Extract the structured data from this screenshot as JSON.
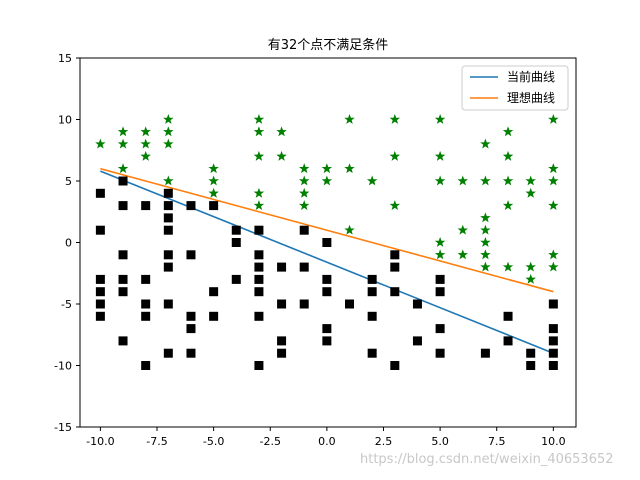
{
  "chart_data": {
    "type": "scatter",
    "title": "有32个点不满足条件",
    "xlabel": "",
    "ylabel": "",
    "xlim": [
      -10.9,
      11.0
    ],
    "ylim": [
      -15,
      15
    ],
    "x_ticks": [
      -10.0,
      -7.5,
      -5.0,
      -2.5,
      0.0,
      2.5,
      5.0,
      7.5,
      10.0
    ],
    "x_tick_labels": [
      "-10.0",
      "-7.5",
      "-5.0",
      "-2.5",
      "0.0",
      "2.5",
      "5.0",
      "7.5",
      "10.0"
    ],
    "y_ticks": [
      -15,
      -10,
      -5,
      0,
      5,
      10,
      15
    ],
    "y_tick_labels": [
      "-15",
      "-10",
      "-5",
      "0",
      "5",
      "10",
      "15"
    ],
    "grid": false,
    "legend_position": "top-right",
    "series": [
      {
        "name": "当前曲线",
        "kind": "line",
        "color": "#1f77b4",
        "x": [
          -10,
          10
        ],
        "y": [
          5.8,
          -9.0
        ]
      },
      {
        "name": "理想曲线",
        "kind": "line",
        "color": "#ff7f0e",
        "x": [
          -10,
          10
        ],
        "y": [
          6.0,
          -4.0
        ]
      },
      {
        "kind": "scatter",
        "marker": "star",
        "color": "#008000",
        "points": [
          [
            -10,
            8
          ],
          [
            -9,
            9
          ],
          [
            -9,
            8
          ],
          [
            -9,
            6
          ],
          [
            -8,
            9
          ],
          [
            -8,
            8
          ],
          [
            -8,
            7
          ],
          [
            -7,
            10
          ],
          [
            -7,
            9
          ],
          [
            -7,
            8
          ],
          [
            -7,
            5
          ],
          [
            -5,
            6
          ],
          [
            -5,
            5
          ],
          [
            -5,
            4
          ],
          [
            -3,
            10
          ],
          [
            -3,
            9
          ],
          [
            -3,
            7
          ],
          [
            -3,
            4
          ],
          [
            -3,
            3
          ],
          [
            -2,
            9
          ],
          [
            -2,
            7
          ],
          [
            -1,
            6
          ],
          [
            -1,
            5
          ],
          [
            -1,
            4
          ],
          [
            -1,
            3
          ],
          [
            0,
            6
          ],
          [
            0,
            5
          ],
          [
            1,
            10
          ],
          [
            1,
            6
          ],
          [
            1,
            1
          ],
          [
            2,
            5
          ],
          [
            3,
            10
          ],
          [
            3,
            7
          ],
          [
            3,
            3
          ],
          [
            5,
            10
          ],
          [
            5,
            7
          ],
          [
            5,
            5
          ],
          [
            5,
            0
          ],
          [
            5,
            -1
          ],
          [
            6,
            5
          ],
          [
            6,
            1
          ],
          [
            6,
            -1
          ],
          [
            7,
            8
          ],
          [
            7,
            5
          ],
          [
            7,
            2
          ],
          [
            7,
            1
          ],
          [
            7,
            0
          ],
          [
            7,
            -1
          ],
          [
            7,
            -2
          ],
          [
            8,
            9
          ],
          [
            8,
            7
          ],
          [
            8,
            5
          ],
          [
            8,
            3
          ],
          [
            8,
            -2
          ],
          [
            9,
            5
          ],
          [
            9,
            4
          ],
          [
            9,
            -2
          ],
          [
            9,
            -3
          ],
          [
            10,
            10
          ],
          [
            10,
            6
          ],
          [
            10,
            5
          ],
          [
            10,
            3
          ],
          [
            10,
            -1
          ],
          [
            10,
            -2
          ]
        ]
      },
      {
        "kind": "scatter",
        "marker": "square",
        "color": "#000000",
        "points": [
          [
            -10,
            4
          ],
          [
            -10,
            1
          ],
          [
            -10,
            -3
          ],
          [
            -10,
            -4
          ],
          [
            -10,
            -5
          ],
          [
            -10,
            -6
          ],
          [
            -9,
            5
          ],
          [
            -9,
            3
          ],
          [
            -9,
            -1
          ],
          [
            -9,
            -3
          ],
          [
            -9,
            -4
          ],
          [
            -9,
            -8
          ],
          [
            -8,
            3
          ],
          [
            -8,
            -3
          ],
          [
            -8,
            -5
          ],
          [
            -8,
            -6
          ],
          [
            -8,
            -10
          ],
          [
            -7,
            4
          ],
          [
            -7,
            3
          ],
          [
            -7,
            2
          ],
          [
            -7,
            1
          ],
          [
            -7,
            -1
          ],
          [
            -7,
            -2
          ],
          [
            -7,
            -5
          ],
          [
            -7,
            -9
          ],
          [
            -6,
            3
          ],
          [
            -6,
            -1
          ],
          [
            -6,
            -6
          ],
          [
            -6,
            -7
          ],
          [
            -6,
            -9
          ],
          [
            -5,
            3
          ],
          [
            -5,
            -4
          ],
          [
            -5,
            -6
          ],
          [
            -4,
            1
          ],
          [
            -4,
            0
          ],
          [
            -4,
            -3
          ],
          [
            -3,
            1
          ],
          [
            -3,
            -1
          ],
          [
            -3,
            -2
          ],
          [
            -3,
            -3
          ],
          [
            -3,
            -4
          ],
          [
            -3,
            -6
          ],
          [
            -3,
            -10
          ],
          [
            -2,
            -2
          ],
          [
            -2,
            -5
          ],
          [
            -2,
            -8
          ],
          [
            -2,
            -9
          ],
          [
            -1,
            1
          ],
          [
            -1,
            -2
          ],
          [
            -1,
            -5
          ],
          [
            0,
            0
          ],
          [
            0,
            -3
          ],
          [
            0,
            -4
          ],
          [
            0,
            -7
          ],
          [
            0,
            -8
          ],
          [
            1,
            -5
          ],
          [
            2,
            -3
          ],
          [
            2,
            -4
          ],
          [
            2,
            -6
          ],
          [
            2,
            -9
          ],
          [
            3,
            -1
          ],
          [
            3,
            -2
          ],
          [
            3,
            -4
          ],
          [
            3,
            -10
          ],
          [
            4,
            -5
          ],
          [
            4,
            -8
          ],
          [
            5,
            -3
          ],
          [
            5,
            -4
          ],
          [
            5,
            -7
          ],
          [
            5,
            -9
          ],
          [
            7,
            -9
          ],
          [
            8,
            -6
          ],
          [
            8,
            -8
          ],
          [
            9,
            -9
          ],
          [
            9,
            -10
          ],
          [
            10,
            -5
          ],
          [
            10,
            -7
          ],
          [
            10,
            -8
          ],
          [
            10,
            -9
          ],
          [
            10,
            -10
          ]
        ]
      }
    ]
  },
  "watermark": "https://blog.csdn.net/weixin_40653652"
}
